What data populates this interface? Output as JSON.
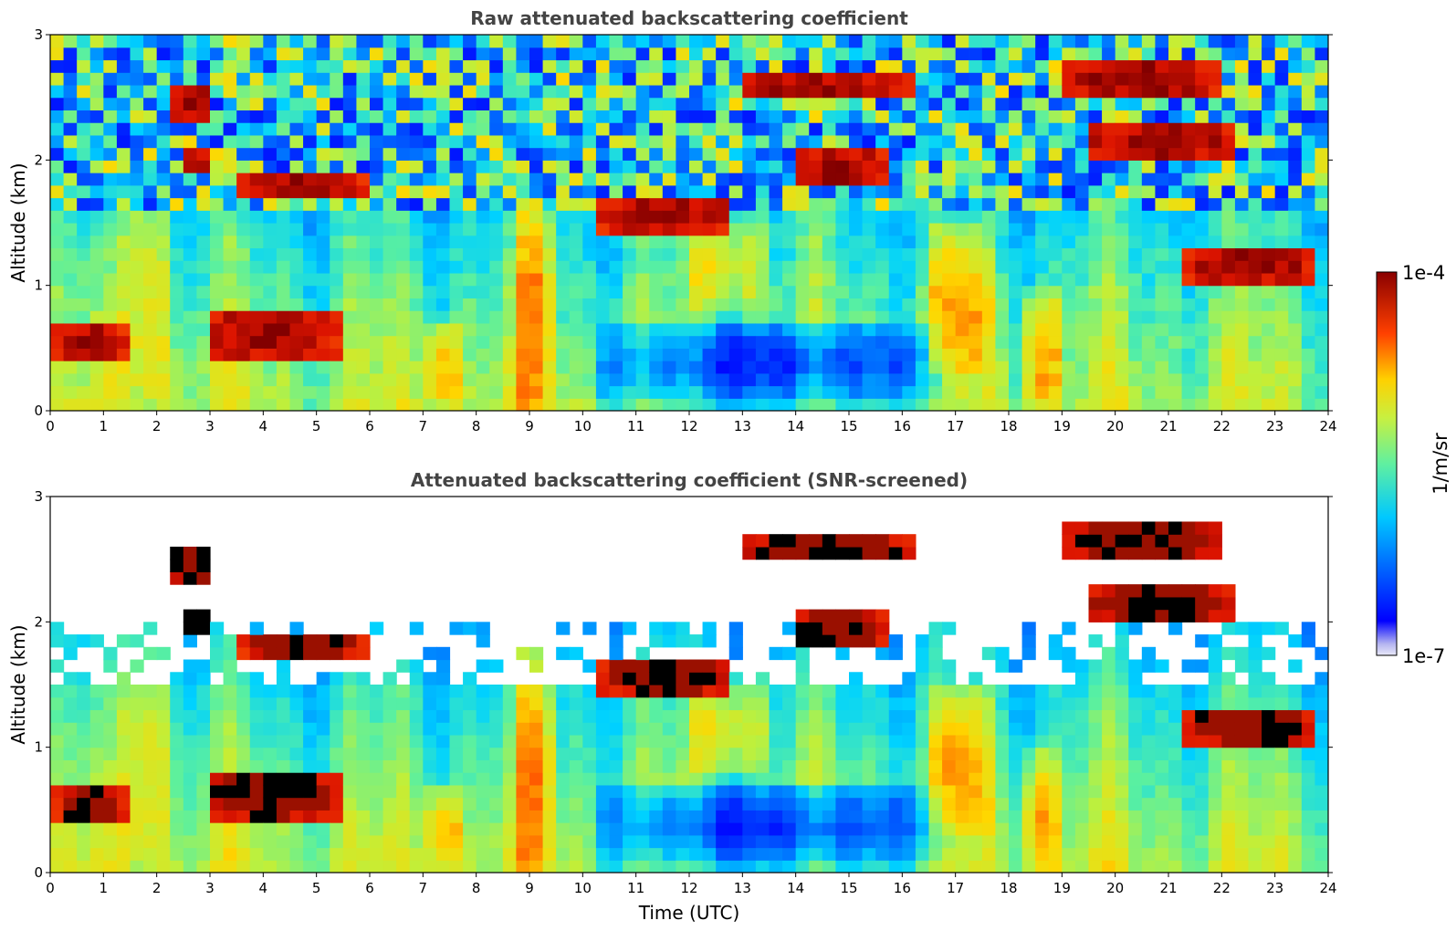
{
  "chart_data": [
    {
      "type": "heatmap",
      "title": "Raw attenuated backscattering coefficient",
      "xlabel": "",
      "ylabel": "Altitude (km)",
      "xlim": [
        0,
        24
      ],
      "ylim": [
        0,
        3
      ],
      "x_ticks": [
        "0",
        "1",
        "2",
        "3",
        "4",
        "5",
        "6",
        "7",
        "8",
        "9",
        "10",
        "11",
        "12",
        "13",
        "14",
        "15",
        "16",
        "17",
        "18",
        "19",
        "20",
        "21",
        "22",
        "23",
        "24"
      ],
      "y_ticks": [
        "0",
        "1",
        "2",
        "3"
      ],
      "colormap": "jet",
      "color_scale": "log",
      "color_range": [
        1e-07,
        0.0001
      ],
      "screened": false,
      "features": [
        {
          "kind": "cloud",
          "t": [
            0.1,
            1.4
          ],
          "z": [
            0.35,
            0.7
          ]
        },
        {
          "kind": "cloud",
          "t": [
            2.2,
            3.1
          ],
          "z": [
            2.3,
            2.65
          ]
        },
        {
          "kind": "cloud",
          "t": [
            2.4,
            3.0
          ],
          "z": [
            1.85,
            2.15
          ]
        },
        {
          "kind": "cloud",
          "t": [
            3.6,
            5.9
          ],
          "z": [
            1.7,
            1.95
          ]
        },
        {
          "kind": "cloud",
          "t": [
            2.9,
            5.4
          ],
          "z": [
            0.4,
            0.85
          ]
        },
        {
          "kind": "cloud",
          "t": [
            10.3,
            12.8
          ],
          "z": [
            1.4,
            1.75
          ]
        },
        {
          "kind": "cloud",
          "t": [
            12.9,
            16.2
          ],
          "z": [
            2.45,
            2.7
          ]
        },
        {
          "kind": "cloud",
          "t": [
            13.9,
            15.7
          ],
          "z": [
            1.75,
            2.1
          ]
        },
        {
          "kind": "cloud",
          "t": [
            19.0,
            22.0
          ],
          "z": [
            2.45,
            2.85
          ]
        },
        {
          "kind": "cloud",
          "t": [
            19.4,
            22.3
          ],
          "z": [
            2.0,
            2.3
          ]
        },
        {
          "kind": "cloud",
          "t": [
            21.3,
            23.8
          ],
          "z": [
            1.0,
            1.35
          ]
        },
        {
          "kind": "plume",
          "t": [
            1.3,
            2.3
          ],
          "z": [
            0,
            2.4
          ]
        },
        {
          "kind": "plume",
          "t": [
            7.0,
            7.8
          ],
          "z": [
            0,
            0.7
          ]
        },
        {
          "kind": "plume",
          "t": [
            8.7,
            9.5
          ],
          "z": [
            0,
            1.9
          ]
        },
        {
          "kind": "plume",
          "t": [
            12.0,
            13.5
          ],
          "z": [
            0.8,
            1.6
          ]
        },
        {
          "kind": "plume",
          "t": [
            16.5,
            17.7
          ],
          "z": [
            0.3,
            1.5
          ]
        },
        {
          "kind": "plume",
          "t": [
            18.2,
            19.0
          ],
          "z": [
            0,
            1.0
          ]
        },
        {
          "kind": "clean",
          "t": [
            10.2,
            16.9
          ],
          "z": [
            0,
            0.7
          ]
        }
      ]
    },
    {
      "type": "heatmap",
      "title": "Attenuated backscattering coefficient (SNR-screened)",
      "xlabel": "Time (UTC)",
      "ylabel": "Altitude (km)",
      "xlim": [
        0,
        24
      ],
      "ylim": [
        0,
        3
      ],
      "x_ticks": [
        "0",
        "1",
        "2",
        "3",
        "4",
        "5",
        "6",
        "7",
        "8",
        "9",
        "10",
        "11",
        "12",
        "13",
        "14",
        "15",
        "16",
        "17",
        "18",
        "19",
        "20",
        "21",
        "22",
        "23",
        "24"
      ],
      "y_ticks": [
        "0",
        "1",
        "2",
        "3"
      ],
      "colormap": "jet",
      "color_scale": "log",
      "color_range": [
        1e-07,
        0.0001
      ],
      "screened": true,
      "features": []
    }
  ],
  "colorbar": {
    "max_label": "1e-4",
    "min_label": "1e-7",
    "unit_label": "1/m/sr"
  }
}
